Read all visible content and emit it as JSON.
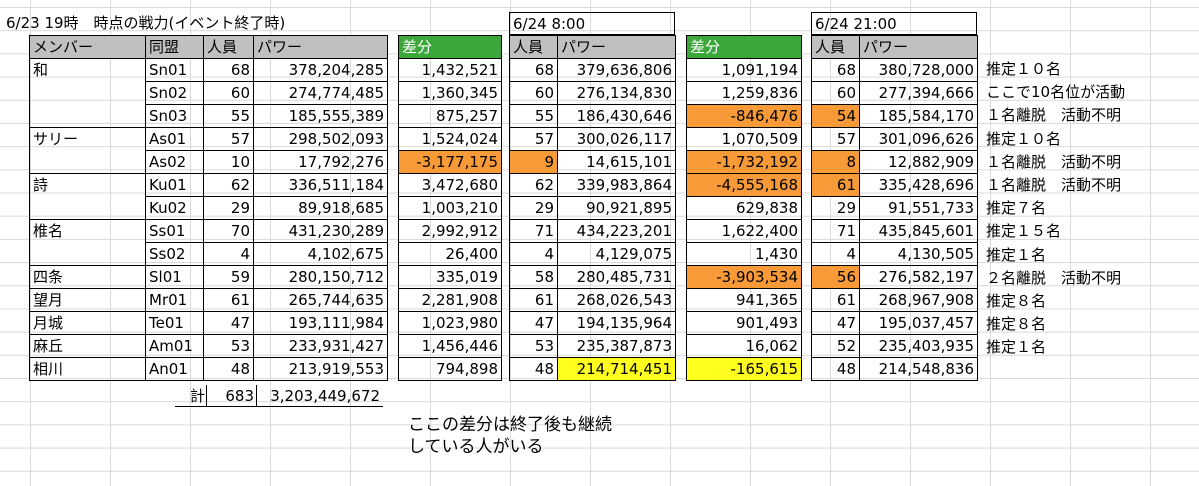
{
  "title": "6/23  19時　時点の戦力(イベント終了時)",
  "block1": {
    "headers": [
      "メンバー",
      "同盟",
      "人員",
      "パワー"
    ],
    "rows": [
      [
        "和",
        "Sn01",
        "68",
        "378,204,285"
      ],
      [
        "",
        "Sn02",
        "60",
        "274,774,485"
      ],
      [
        "",
        "Sn03",
        "55",
        "185,555,389"
      ],
      [
        "サリー",
        "As01",
        "57",
        "298,502,093"
      ],
      [
        "",
        "As02",
        "10",
        "17,792,276"
      ],
      [
        "詩",
        "Ku01",
        "62",
        "336,511,184"
      ],
      [
        "",
        "Ku02",
        "29",
        "89,918,685"
      ],
      [
        "椎名",
        "Ss01",
        "70",
        "431,230,289"
      ],
      [
        "",
        "Ss02",
        "4",
        "4,102,675"
      ],
      [
        "四条",
        "Sl01",
        "59",
        "280,150,712"
      ],
      [
        "望月",
        "Mr01",
        "61",
        "265,744,635"
      ],
      [
        "月城",
        "Te01",
        "47",
        "193,111,984"
      ],
      [
        "麻丘",
        "Am01",
        "53",
        "233,931,427"
      ],
      [
        "相川",
        "An01",
        "48",
        "213,919,553"
      ]
    ],
    "total_label": "計",
    "total_members": "683",
    "total_power": "3,203,449,672"
  },
  "diff1": {
    "header": "差分",
    "values": [
      "1,432,521",
      "1,360,345",
      "875,257",
      "1,524,024",
      "-3,177,175",
      "3,472,680",
      "1,003,210",
      "2,992,912",
      "26,400",
      "335,019",
      "2,281,908",
      "1,023,980",
      "1,456,446",
      "794,898"
    ]
  },
  "block2": {
    "date": "6/24 8:00",
    "headers": [
      "人員",
      "パワー"
    ],
    "rows": [
      [
        "68",
        "379,636,806"
      ],
      [
        "60",
        "276,134,830"
      ],
      [
        "55",
        "186,430,646"
      ],
      [
        "57",
        "300,026,117"
      ],
      [
        "9",
        "14,615,101"
      ],
      [
        "62",
        "339,983,864"
      ],
      [
        "29",
        "90,921,895"
      ],
      [
        "71",
        "434,223,201"
      ],
      [
        "4",
        "4,129,075"
      ],
      [
        "58",
        "280,485,731"
      ],
      [
        "61",
        "268,026,543"
      ],
      [
        "47",
        "194,135,964"
      ],
      [
        "53",
        "235,387,873"
      ],
      [
        "48",
        "214,714,451"
      ]
    ]
  },
  "diff2": {
    "header": "差分",
    "values": [
      "1,091,194",
      "1,259,836",
      "-846,476",
      "1,070,509",
      "-1,732,192",
      "-4,555,168",
      "629,838",
      "1,622,400",
      "1,430",
      "-3,903,534",
      "941,365",
      "901,493",
      "16,062",
      "-165,615"
    ]
  },
  "block3": {
    "date": "6/24 21:00",
    "headers": [
      "人員",
      "パワー"
    ],
    "rows": [
      [
        "68",
        "380,728,000"
      ],
      [
        "60",
        "277,394,666"
      ],
      [
        "54",
        "185,584,170"
      ],
      [
        "57",
        "301,096,626"
      ],
      [
        "8",
        "12,882,909"
      ],
      [
        "61",
        "335,428,696"
      ],
      [
        "29",
        "91,551,733"
      ],
      [
        "71",
        "435,845,601"
      ],
      [
        "4",
        "4,130,505"
      ],
      [
        "56",
        "276,582,197"
      ],
      [
        "61",
        "268,967,908"
      ],
      [
        "47",
        "195,037,457"
      ],
      [
        "52",
        "235,403,935"
      ],
      [
        "48",
        "214,548,836"
      ]
    ]
  },
  "notes": [
    "推定１０名",
    "ここで10名位が活動",
    "１名離脱　活動不明",
    "推定１０名",
    "１名離脱　活動不明",
    "１名離脱　活動不明",
    "推定７名",
    "推定１５名",
    "推定１名",
    "２名離脱　活動不明",
    "推定８名",
    "推定８名",
    "推定１名",
    ""
  ],
  "footnote": [
    "ここの差分は終了後も継続",
    "している人がいる"
  ],
  "colors": {
    "header_gray": "#c0c0c0",
    "green": "#3ca83c",
    "orange": "#f79a37",
    "yellow": "#ffff1f"
  }
}
